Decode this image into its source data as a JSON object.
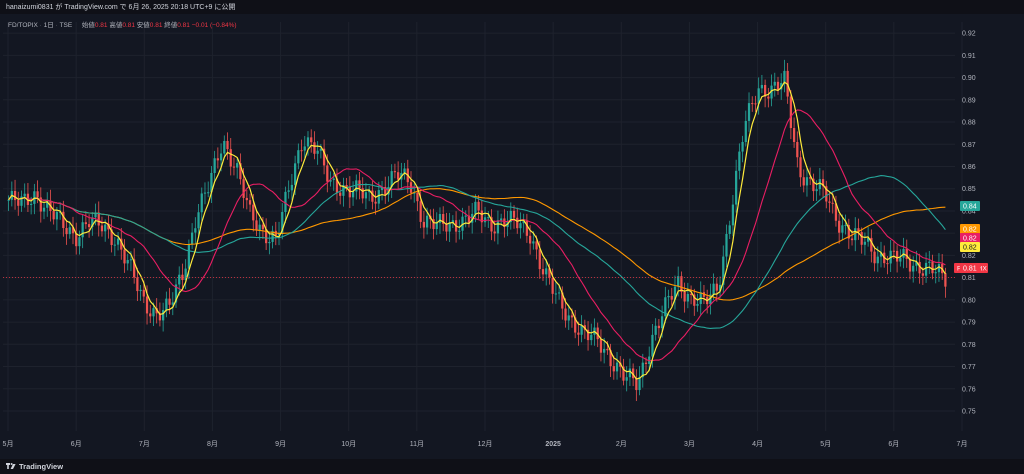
{
  "header": {
    "publish_line": "hanaizumi0831 が TradingView.com で 6月 26, 2025 20:18 UTC+9 に公開"
  },
  "legend": {
    "symbol": "FD/TOPIX",
    "interval": "1日",
    "exchange": "TSE",
    "open_label": "始値",
    "open_value": "0.81",
    "high_label": "高値",
    "high_value": "0.81",
    "low_label": "安値",
    "low_value": "0.81",
    "close_label": "終値",
    "close_value": "0.81",
    "change": "−0.01 (−0.84%)"
  },
  "footer": {
    "brand": "TradingView"
  },
  "colors": {
    "background": "#131722",
    "up": "#26a69a",
    "down": "#ef5350",
    "fast_ma": "#ffeb3b",
    "mid_ma": "#e91e63",
    "teal_ma": "#26a69a",
    "slow_ma": "#ff9800",
    "grid": "#1e222d"
  },
  "chart_data": {
    "type": "candlestick",
    "title": "FD/TOPIX · 1日 · TSE",
    "price_axis": {
      "ticks": [
        "0.92",
        "0.91",
        "0.90",
        "0.89",
        "0.88",
        "0.87",
        "0.86",
        "0.85",
        "0.84",
        "0.83",
        "0.82",
        "0.81",
        "0.80",
        "0.79",
        "0.78",
        "0.77",
        "0.76",
        "0.75"
      ],
      "range": [
        0.741,
        0.925
      ]
    },
    "time_axis": {
      "ticks": [
        "5月",
        "6月",
        "7月",
        "8月",
        "9月",
        "10月",
        "11月",
        "12月",
        "2025",
        "2月",
        "3月",
        "4月",
        "5月",
        "6月",
        "7月"
      ],
      "bold_ticks": [
        "2025"
      ]
    },
    "price_labels": [
      {
        "text": "0.84",
        "color": "#26a69a"
      },
      {
        "text": "0.82",
        "color": "#ff9800"
      },
      {
        "text": "0.82",
        "color": "#e91e63"
      },
      {
        "text": "0.82",
        "color": "#ffeb3b"
      },
      {
        "text": "0.81",
        "color": "#f23645",
        "symbol": "FD/TOPIX"
      }
    ],
    "last_price": 0.81,
    "closes_weekly": [
      0.845,
      0.843,
      0.848,
      0.84,
      0.834,
      0.829,
      0.835,
      0.833,
      0.828,
      0.815,
      0.8,
      0.794,
      0.796,
      0.812,
      0.838,
      0.851,
      0.872,
      0.86,
      0.838,
      0.831,
      0.828,
      0.85,
      0.874,
      0.868,
      0.852,
      0.851,
      0.849,
      0.845,
      0.851,
      0.856,
      0.853,
      0.836,
      0.833,
      0.834,
      0.836,
      0.839,
      0.834,
      0.836,
      0.834,
      0.83,
      0.812,
      0.8,
      0.792,
      0.784,
      0.782,
      0.774,
      0.765,
      0.762,
      0.782,
      0.795,
      0.808,
      0.801,
      0.798,
      0.806,
      0.841,
      0.878,
      0.896,
      0.894,
      0.898,
      0.86,
      0.851,
      0.848,
      0.836,
      0.828,
      0.826,
      0.82,
      0.818,
      0.819,
      0.815,
      0.813,
      0.81
    ]
  }
}
